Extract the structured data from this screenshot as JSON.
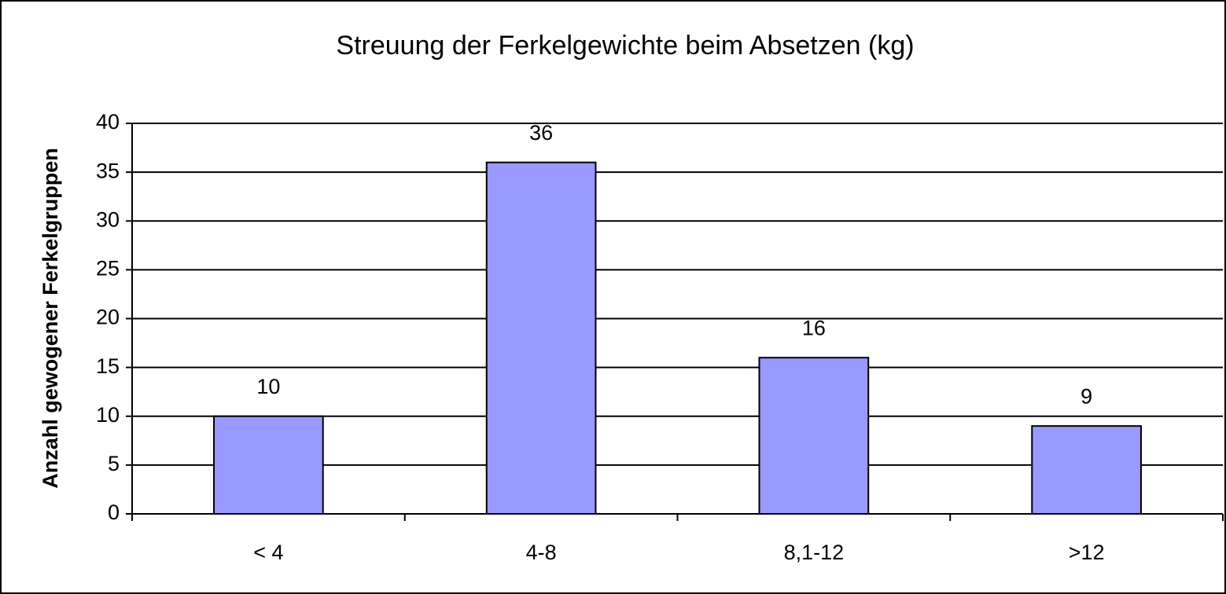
{
  "chart_data": {
    "type": "bar",
    "title": "Streuung der Ferkelgewichte beim Absetzen (kg)",
    "y_label": "Anzahl gewogener Ferkelgruppen",
    "categories": [
      "< 4",
      "4-8",
      "8,1-12",
      ">12"
    ],
    "values": [
      10,
      36,
      16,
      9
    ],
    "color": "#9999ff",
    "ylim": [
      0,
      40
    ],
    "yticks": [
      0,
      5,
      10,
      15,
      20,
      25,
      30,
      35,
      40
    ],
    "grid": true
  }
}
